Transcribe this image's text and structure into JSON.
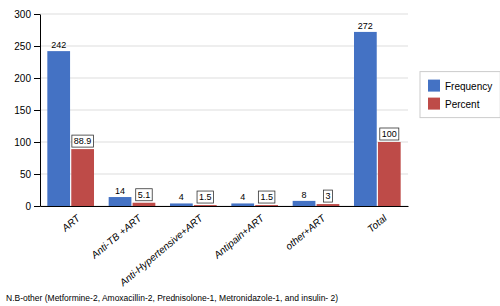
{
  "chart_data": {
    "type": "bar",
    "categories": [
      "ART",
      "Anti-TB +ART",
      "Anti-Hypertensive+ART",
      "Antipain+ART",
      "other+ART",
      "Total"
    ],
    "series": [
      {
        "name": "Frequency",
        "color": "#4472C4",
        "values": [
          242,
          14,
          4,
          4,
          8,
          272
        ]
      },
      {
        "name": "Percent",
        "color": "#BE4B48",
        "values": [
          88.9,
          5.1,
          1.5,
          1.5,
          3,
          100
        ]
      }
    ],
    "ylim": [
      0,
      300
    ],
    "yticks": [
      0,
      50,
      100,
      150,
      200,
      250,
      300
    ],
    "grid": true,
    "legend": "right",
    "data_labels": true,
    "annotations": [
      "N.B-other (Metformine-2, Amoxacillin-2, Prednisolone-1, Metronidazole-1, and insulin- 2)"
    ]
  }
}
